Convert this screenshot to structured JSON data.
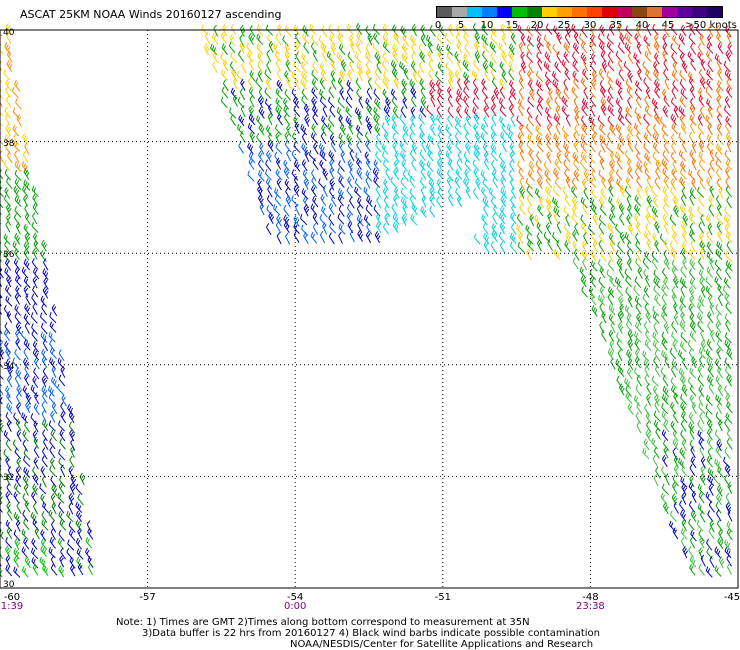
{
  "title": "ASCAT 25KM NOAA Winds 20160127 ascending",
  "legend": {
    "colors": [
      "#5a5a5a",
      "#a8a8a8",
      "#00c0ff",
      "#0080ff",
      "#0000ff",
      "#00c000",
      "#008000",
      "#ffd000",
      "#ffa000",
      "#ff7000",
      "#ff4000",
      "#e00000",
      "#c00060",
      "#8b4513",
      "#e07030",
      "#a000a0",
      "#6000a0",
      "#400080",
      "#200060"
    ],
    "labels": [
      "0",
      "5",
      "10",
      "15",
      "20",
      "25",
      "30",
      "35",
      "40",
      "45",
      ">50 knots"
    ]
  },
  "chart_data": {
    "type": "wind-barb-map",
    "lat_range": [
      30,
      40
    ],
    "lon_range": [
      -60,
      -45
    ],
    "lat_ticks": [
      "40",
      "38",
      "36",
      "34",
      "32",
      "30"
    ],
    "lon_ticks": [
      "-60",
      "-57",
      "-54",
      "-51",
      "-48",
      "-45"
    ],
    "grid": true,
    "speed_units": "knots"
  },
  "times": [
    {
      "label": "1:39",
      "lon": -60
    },
    {
      "label": "0:00",
      "lon": -54
    },
    {
      "label": "23:38",
      "lon": -48
    }
  ],
  "notes": [
    "Note: 1) Times are GMT 2)Times along bottom correspond to measurement at 35N",
    "3)Data buffer is 22 hrs from 20160127 4) Black wind barbs indicate possible contamination",
    "NOAA/NESDIS/Center for Satellite Applications and Research"
  ]
}
